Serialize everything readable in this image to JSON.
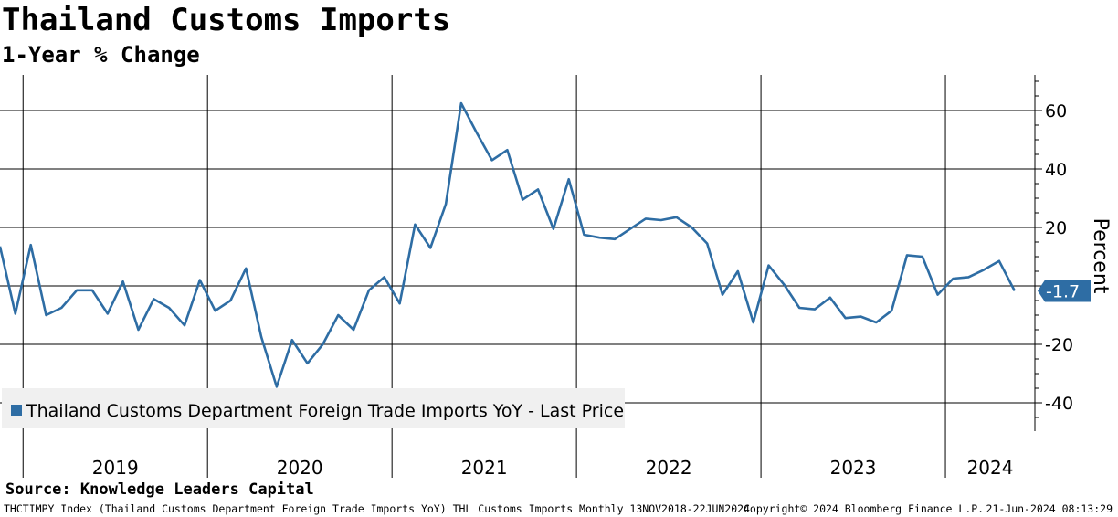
{
  "title": "Thailand Customs Imports",
  "subtitle": "1-Year % Change",
  "source": "Source: Knowledge Leaders Capital",
  "footer": {
    "left": "THCTIMPY Index (Thailand Customs Department Foreign Trade Imports YoY) THL Customs Imports  Monthly 13NOV2018-22JUN2024",
    "middle": "Copyright© 2024 Bloomberg Finance L.P.",
    "right": "21-Jun-2024 08:13:29"
  },
  "colors": {
    "series": "#2e6da4",
    "grid": "#000000",
    "legend_bg": "#f0f0f0",
    "last_value_bg": "#2e6da4"
  },
  "chart_data": {
    "type": "line",
    "ylabel": "Percent",
    "ylim": [
      -50,
      72
    ],
    "yticks": [
      -40,
      -20,
      20,
      40,
      60
    ],
    "y_gridlines": [
      -40,
      -20,
      0,
      20,
      40,
      60
    ],
    "year_labels": [
      "2019",
      "2020",
      "2021",
      "2022",
      "2023",
      "2024"
    ],
    "x_range": [
      "2018-11",
      "2024-06"
    ],
    "grid": true,
    "legend_position": "bottom-left",
    "last_value_label": "-1.7",
    "series": [
      {
        "name": "Thailand Customs Department Foreign Trade Imports YoY - Last Price",
        "points": [
          [
            "2018-11",
            13.5
          ],
          [
            "2018-12",
            -9.5
          ],
          [
            "2019-01",
            14.0
          ],
          [
            "2019-02",
            -10.0
          ],
          [
            "2019-03",
            -7.5
          ],
          [
            "2019-04",
            -1.5
          ],
          [
            "2019-05",
            -1.5
          ],
          [
            "2019-06",
            -9.5
          ],
          [
            "2019-07",
            1.5
          ],
          [
            "2019-08",
            -15.0
          ],
          [
            "2019-09",
            -4.5
          ],
          [
            "2019-10",
            -7.5
          ],
          [
            "2019-11",
            -13.5
          ],
          [
            "2019-12",
            2.0
          ],
          [
            "2020-01",
            -8.5
          ],
          [
            "2020-02",
            -5.0
          ],
          [
            "2020-03",
            6.0
          ],
          [
            "2020-04",
            -17.5
          ],
          [
            "2020-05",
            -34.5
          ],
          [
            "2020-06",
            -18.5
          ],
          [
            "2020-07",
            -26.5
          ],
          [
            "2020-08",
            -20.0
          ],
          [
            "2020-09",
            -10.0
          ],
          [
            "2020-10",
            -15.0
          ],
          [
            "2020-11",
            -1.5
          ],
          [
            "2020-12",
            3.0
          ],
          [
            "2021-01",
            -6.0
          ],
          [
            "2021-02",
            21.0
          ],
          [
            "2021-03",
            13.0
          ],
          [
            "2021-04",
            28.0
          ],
          [
            "2021-05",
            62.5
          ],
          [
            "2021-06",
            52.5
          ],
          [
            "2021-07",
            43.0
          ],
          [
            "2021-08",
            46.5
          ],
          [
            "2021-09",
            29.5
          ],
          [
            "2021-10",
            33.0
          ],
          [
            "2021-11",
            19.5
          ],
          [
            "2021-12",
            36.5
          ],
          [
            "2022-01",
            17.5
          ],
          [
            "2022-02",
            16.5
          ],
          [
            "2022-03",
            16.0
          ],
          [
            "2022-04",
            19.5
          ],
          [
            "2022-05",
            23.0
          ],
          [
            "2022-06",
            22.5
          ],
          [
            "2022-07",
            23.5
          ],
          [
            "2022-08",
            20.0
          ],
          [
            "2022-09",
            14.5
          ],
          [
            "2022-10",
            -3.0
          ],
          [
            "2022-11",
            5.0
          ],
          [
            "2022-12",
            -12.5
          ],
          [
            "2023-01",
            7.0
          ],
          [
            "2023-02",
            0.5
          ],
          [
            "2023-03",
            -7.5
          ],
          [
            "2023-04",
            -8.0
          ],
          [
            "2023-05",
            -4.0
          ],
          [
            "2023-06",
            -11.0
          ],
          [
            "2023-07",
            -10.5
          ],
          [
            "2023-08",
            -12.5
          ],
          [
            "2023-09",
            -8.5
          ],
          [
            "2023-10",
            10.5
          ],
          [
            "2023-11",
            10.0
          ],
          [
            "2023-12",
            -3.0
          ],
          [
            "2024-01",
            2.5
          ],
          [
            "2024-02",
            3.0
          ],
          [
            "2024-03",
            5.5
          ],
          [
            "2024-04",
            8.5
          ],
          [
            "2024-05",
            -1.7
          ]
        ]
      }
    ]
  }
}
